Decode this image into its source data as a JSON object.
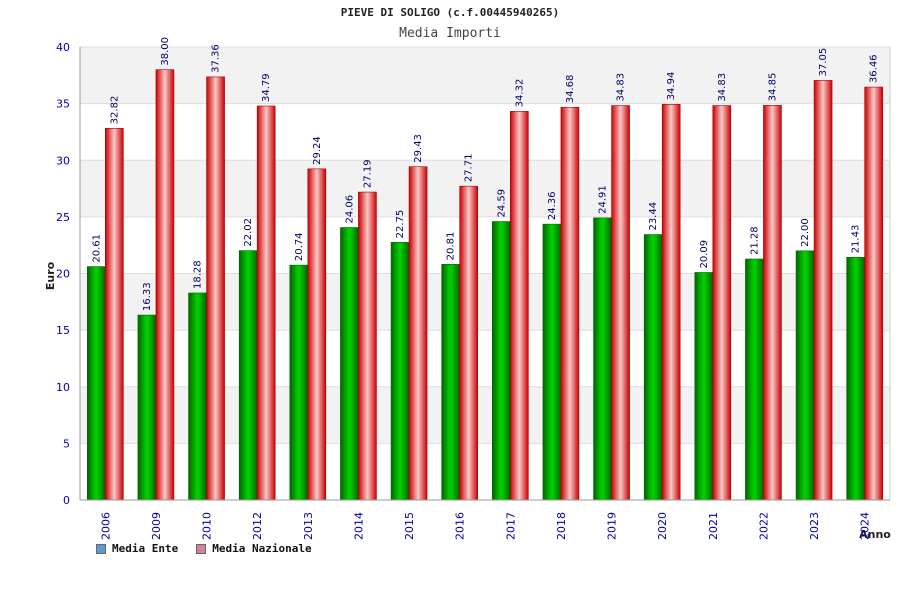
{
  "chart_data": {
    "type": "bar",
    "title": "PIEVE DI SOLIGO (c.f.00445940265)",
    "subtitle": "Media Importi",
    "xlabel": "Anno",
    "ylabel": "Euro",
    "ylim": [
      0,
      40
    ],
    "yticks": [
      0,
      5,
      10,
      15,
      20,
      25,
      30,
      35,
      40
    ],
    "categories": [
      "2006",
      "2009",
      "2010",
      "2012",
      "2013",
      "2014",
      "2015",
      "2016",
      "2017",
      "2018",
      "2019",
      "2020",
      "2021",
      "2022",
      "2023",
      "2024"
    ],
    "series": [
      {
        "name": "Media Ente",
        "color": "#00aa00",
        "values": [
          20.61,
          16.33,
          18.28,
          22.02,
          20.74,
          24.06,
          22.75,
          20.81,
          24.59,
          24.36,
          24.91,
          23.44,
          20.09,
          21.28,
          22.0,
          21.43
        ],
        "labels": [
          "20.61",
          "16.33",
          "18.28",
          "22.02",
          "20.74",
          "24.06",
          "22.75",
          "20.81",
          "24.59",
          "24.36",
          "24.91",
          "23.44",
          "20.09",
          "21.28",
          "22.00",
          "21.43"
        ]
      },
      {
        "name": "Media Nazionale",
        "color": "#ee0000",
        "values": [
          32.82,
          38.0,
          37.36,
          34.79,
          29.24,
          27.19,
          29.43,
          27.71,
          34.32,
          34.68,
          34.83,
          34.94,
          34.83,
          34.85,
          37.05,
          36.46
        ],
        "labels": [
          "32.82",
          "38.00",
          "37.36",
          "34.79",
          "29.24",
          "27.19",
          "29.43",
          "27.71",
          "34.32",
          "34.68",
          "34.83",
          "34.94",
          "34.83",
          "34.85",
          "37.05",
          "36.46"
        ]
      }
    ],
    "grid": true,
    "legend_position": "bottom-left"
  },
  "legend": {
    "items": [
      {
        "label": "Media Ente",
        "color": "#5b9bd5"
      },
      {
        "label": "Media Nazionale",
        "color": "#d77fa1"
      }
    ]
  }
}
